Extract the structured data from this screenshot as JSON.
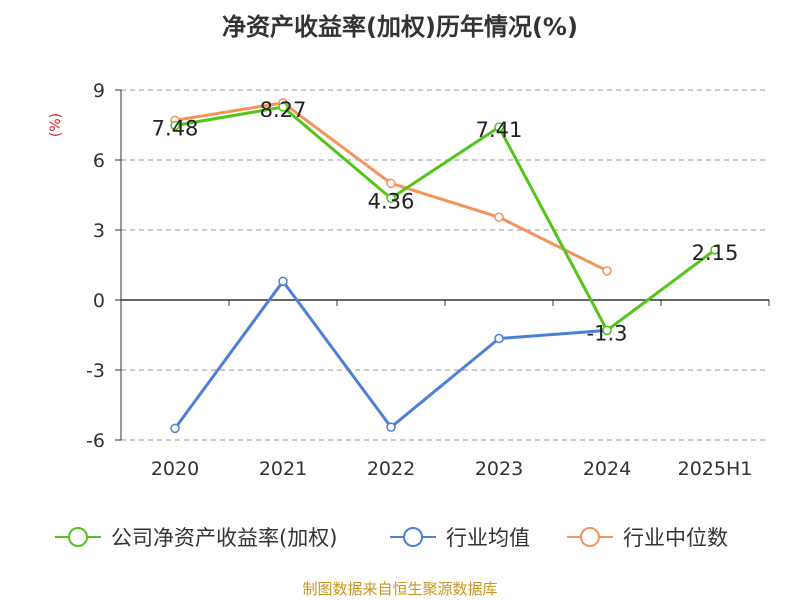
{
  "chart_data": {
    "type": "line",
    "title": "净资产收益率(加权)历年情况(%)",
    "ylabel": "(%)",
    "xlabel": "",
    "categories": [
      "2020",
      "2021",
      "2022",
      "2023",
      "2024",
      "2025H1"
    ],
    "ylim": [
      -6,
      9
    ],
    "yticks": [
      9,
      6,
      3,
      0,
      -3,
      -6
    ],
    "grid": true,
    "legend_position": "bottom",
    "series": [
      {
        "name": "公司净资产收益率(加权)",
        "color": "#52c41a",
        "values": [
          7.48,
          8.27,
          4.36,
          7.41,
          -1.3,
          2.15
        ],
        "data_labels": [
          "7.48",
          "8.27",
          "4.36",
          "7.41",
          "-1.3",
          "2.15"
        ]
      },
      {
        "name": "行业均值",
        "color": "#4e7fd6",
        "values": [
          -5.5,
          0.8,
          -5.45,
          -1.65,
          -1.3,
          null
        ],
        "data_labels": []
      },
      {
        "name": "行业中位数",
        "color": "#f5935a",
        "values": [
          7.7,
          8.45,
          5.0,
          3.55,
          1.25,
          null
        ],
        "data_labels": []
      }
    ]
  },
  "source": "制图数据来自恒生聚源数据库",
  "colors": {
    "axis": "#333333",
    "grid": "#999999",
    "ylabel": "#e02020",
    "source": "#c8961e"
  }
}
